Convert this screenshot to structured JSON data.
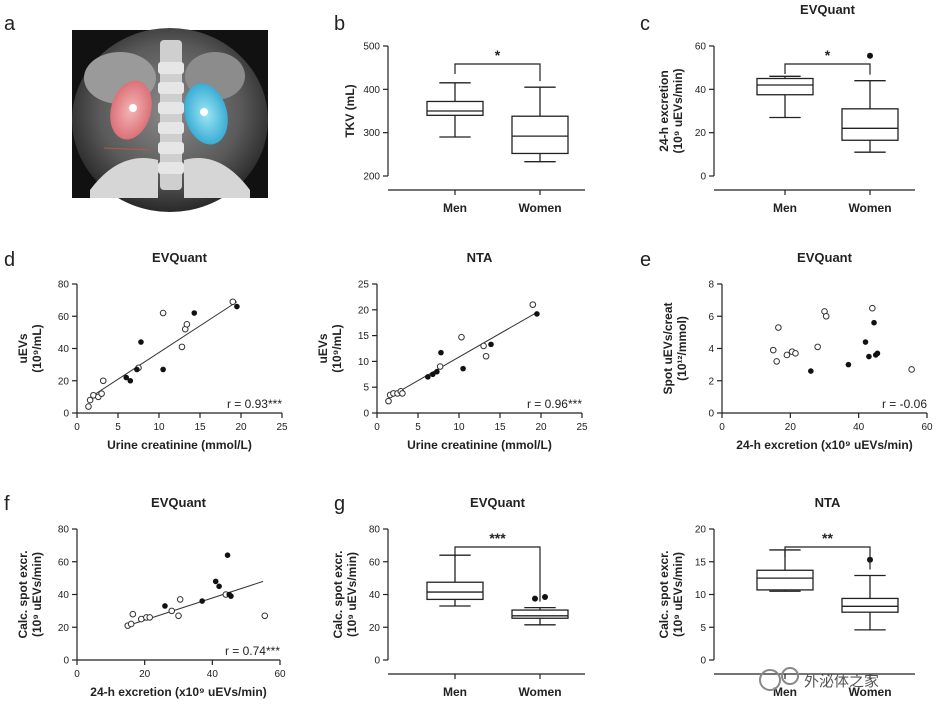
{
  "panel_letters": {
    "a": "a",
    "b": "b",
    "c": "c",
    "d": "d",
    "e": "e",
    "f": "f",
    "g": "g"
  },
  "watermark": "外泌体之家",
  "image_panel": {
    "description_hidden": true
  },
  "chart_data": [
    {
      "id": "b",
      "type": "box",
      "title": "",
      "ylabel": "TKV (mL)",
      "xlabel": "",
      "ylim": [
        200,
        500
      ],
      "yticks": [
        "200",
        "300",
        "400",
        "500"
      ],
      "categories": [
        "Men",
        "Women"
      ],
      "boxes": [
        {
          "name": "Men",
          "min": 290,
          "q1": 340,
          "median": 350,
          "q3": 372,
          "max": 415,
          "outliers": []
        },
        {
          "name": "Women",
          "min": 233,
          "q1": 252,
          "median": 292,
          "q3": 338,
          "max": 405,
          "outliers": []
        }
      ],
      "significance": "*"
    },
    {
      "id": "c",
      "type": "box",
      "title": "EVQuant",
      "ylabel": "24-h excretion",
      "ylabel2": "(10⁹ uEVs/min)",
      "xlabel": "",
      "ylim": [
        0,
        60
      ],
      "yticks": [
        "0",
        "20",
        "40",
        "60"
      ],
      "categories": [
        "Men",
        "Women"
      ],
      "boxes": [
        {
          "name": "Men",
          "min": 27,
          "q1": 37.5,
          "median": 42,
          "q3": 45,
          "max": 46,
          "outliers": []
        },
        {
          "name": "Women",
          "min": 11,
          "q1": 16.5,
          "median": 22,
          "q3": 31,
          "max": 44,
          "outliers": [
            55.5
          ]
        }
      ],
      "significance": "*"
    },
    {
      "id": "d1",
      "type": "scatter",
      "title": "EVQuant",
      "xlabel": "Urine creatinine (mmol/L)",
      "ylabel": "uEVs",
      "ylabel2": "(10⁹/mL)",
      "xlim": [
        0,
        25
      ],
      "ylim": [
        0,
        80
      ],
      "xticks": [
        "0",
        "5",
        "10",
        "15",
        "20",
        "25"
      ],
      "yticks": [
        "0",
        "20",
        "40",
        "60",
        "80"
      ],
      "open_points": [
        [
          1.4,
          4
        ],
        [
          1.6,
          8
        ],
        [
          2,
          11
        ],
        [
          2.6,
          10
        ],
        [
          3,
          12
        ],
        [
          3.2,
          20
        ],
        [
          7.5,
          28
        ],
        [
          10.5,
          62
        ],
        [
          12.8,
          41
        ],
        [
          13.2,
          52
        ],
        [
          13.4,
          55
        ],
        [
          19,
          69
        ]
      ],
      "filled_points": [
        [
          6,
          22
        ],
        [
          6.5,
          20
        ],
        [
          7.3,
          27
        ],
        [
          7.8,
          44
        ],
        [
          10.5,
          27
        ],
        [
          14.3,
          62
        ],
        [
          19.5,
          66
        ]
      ],
      "fit": [
        [
          1.4,
          9
        ],
        [
          19.5,
          69
        ]
      ],
      "annotation": "r = 0.93***"
    },
    {
      "id": "d2",
      "type": "scatter",
      "title": "NTA",
      "xlabel": "Urine creatinine (mmol/L)",
      "ylabel": "uEVs",
      "ylabel2": "(10⁹/mL)",
      "xlim": [
        0,
        25
      ],
      "ylim": [
        0,
        25
      ],
      "xticks": [
        "0",
        "5",
        "10",
        "15",
        "20",
        "25"
      ],
      "yticks": [
        "0",
        "5",
        "10",
        "15",
        "20",
        "25"
      ],
      "open_points": [
        [
          1.4,
          2.3
        ],
        [
          1.6,
          3.5
        ],
        [
          2,
          3.8
        ],
        [
          2.5,
          3.8
        ],
        [
          2.9,
          4.2
        ],
        [
          3.1,
          3.8
        ],
        [
          7.7,
          9
        ],
        [
          10.3,
          14.7
        ],
        [
          13,
          13
        ],
        [
          13.3,
          11
        ],
        [
          19,
          21
        ]
      ],
      "filled_points": [
        [
          6.2,
          7
        ],
        [
          6.8,
          7.5
        ],
        [
          7.3,
          8
        ],
        [
          7.8,
          11.7
        ],
        [
          10.5,
          8.6
        ],
        [
          13.9,
          13.3
        ],
        [
          19.5,
          19.2
        ]
      ],
      "fit": [
        [
          1.4,
          3
        ],
        [
          19.5,
          19.5
        ]
      ],
      "annotation": "r = 0.96***"
    },
    {
      "id": "e",
      "type": "scatter",
      "title": "EVQuant",
      "xlabel": "24-h excretion (x10⁹ uEVs/min)",
      "ylabel": "Spot uEVs/creat",
      "ylabel2": "(10¹²/mmol)",
      "xlim": [
        0,
        60
      ],
      "ylim": [
        0,
        8
      ],
      "xticks": [
        "0",
        "20",
        "40",
        "60"
      ],
      "yticks": [
        "0",
        "2",
        "4",
        "6",
        "8"
      ],
      "open_points": [
        [
          15,
          3.9
        ],
        [
          16,
          3.2
        ],
        [
          16.5,
          5.3
        ],
        [
          19,
          3.6
        ],
        [
          20.5,
          3.8
        ],
        [
          21.5,
          3.7
        ],
        [
          28,
          4.1
        ],
        [
          30,
          6.3
        ],
        [
          30.5,
          6
        ],
        [
          44,
          6.5
        ],
        [
          55.5,
          2.7
        ]
      ],
      "filled_points": [
        [
          26,
          2.6
        ],
        [
          37,
          3
        ],
        [
          42,
          4.4
        ],
        [
          43,
          3.5
        ],
        [
          44.5,
          5.6
        ],
        [
          45,
          3.6
        ],
        [
          45.5,
          3.7
        ]
      ],
      "fit": [],
      "annotation": "r = -0.06"
    },
    {
      "id": "f",
      "type": "scatter",
      "title": "EVQuant",
      "xlabel": "24-h excretion (x10⁹ uEVs/min)",
      "ylabel": "Calc. spot excr.",
      "ylabel2": "(10⁹ uEVs/min)",
      "xlim": [
        0,
        60
      ],
      "ylim": [
        0,
        80
      ],
      "xticks": [
        "0",
        "20",
        "40",
        "60"
      ],
      "yticks": [
        "0",
        "20",
        "40",
        "60",
        "80"
      ],
      "open_points": [
        [
          15,
          21
        ],
        [
          16,
          22
        ],
        [
          16.5,
          28
        ],
        [
          19,
          25
        ],
        [
          20.5,
          26
        ],
        [
          21.5,
          26
        ],
        [
          28,
          30
        ],
        [
          30,
          27
        ],
        [
          30.5,
          37
        ],
        [
          44,
          40
        ],
        [
          55.5,
          27
        ]
      ],
      "filled_points": [
        [
          26,
          33
        ],
        [
          37,
          36
        ],
        [
          41,
          48
        ],
        [
          42,
          45
        ],
        [
          44.5,
          64
        ],
        [
          45,
          40
        ],
        [
          45.5,
          39
        ]
      ],
      "fit": [
        [
          15,
          21
        ],
        [
          55,
          48
        ]
      ],
      "annotation": "r = 0.74***"
    },
    {
      "id": "g1",
      "type": "box",
      "title": "EVQuant",
      "ylabel": "Calc. spot excr.",
      "ylabel2": "(10⁹ uEVs/min)",
      "xlabel": "",
      "ylim": [
        0,
        80
      ],
      "yticks": [
        "0",
        "20",
        "40",
        "60",
        "80"
      ],
      "categories": [
        "Men",
        "Women"
      ],
      "boxes": [
        {
          "name": "Men",
          "min": 33,
          "q1": 37,
          "median": 41.5,
          "q3": 47.5,
          "max": 64,
          "outliers": []
        },
        {
          "name": "Women",
          "min": 21.5,
          "q1": 25.5,
          "median": 27,
          "q3": 30.5,
          "max": 32,
          "outliers": [
            37.5,
            38.5
          ]
        }
      ],
      "significance": "***"
    },
    {
      "id": "g2",
      "type": "box",
      "title": "NTA",
      "ylabel": "Calc. spot excr.",
      "ylabel2": "(10⁹ uEVs/min)",
      "xlabel": "",
      "ylim": [
        0,
        20
      ],
      "yticks": [
        "0",
        "5",
        "10",
        "15",
        "20"
      ],
      "categories": [
        "Men",
        "Women"
      ],
      "boxes": [
        {
          "name": "Men",
          "min": 10.5,
          "q1": 10.7,
          "median": 12.5,
          "q3": 13.7,
          "max": 16.8,
          "outliers": []
        },
        {
          "name": "Women",
          "min": 4.6,
          "q1": 7.3,
          "median": 8.2,
          "q3": 9.4,
          "max": 12.9,
          "outliers": [
            15.3
          ]
        }
      ],
      "significance": "**"
    }
  ]
}
